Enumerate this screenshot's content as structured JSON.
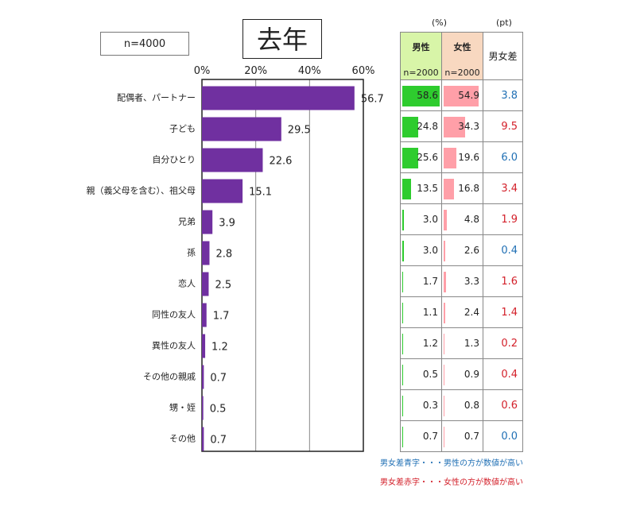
{
  "sample_label": "n=4000",
  "title": "去年",
  "units": {
    "pct": "(%)",
    "pt": "(pt)"
  },
  "table_header": {
    "male": "男性",
    "male_n": "n=2000",
    "female": "女性",
    "female_n": "n=2000",
    "diff": "男女差"
  },
  "notes": {
    "blue": "男女差青字・・・男性の方が数値が高い",
    "red": "男女差赤字・・・女性の方が数値が高い"
  },
  "colors": {
    "bar": "#7030a0",
    "male_bar": "#2ecc2e",
    "female_bar": "#ff9fa8",
    "blue": "#1f6fb4",
    "red": "#d3202a"
  },
  "chart_data": {
    "type": "bar",
    "orientation": "horizontal",
    "title": "去年",
    "xlim": [
      0,
      60
    ],
    "ticks": [
      "0%",
      "20%",
      "40%",
      "60%"
    ],
    "grid": true,
    "categories": [
      "配偶者、パートナー",
      "子ども",
      "自分ひとり",
      "親（義父母を含む）、祖父母",
      "兄弟",
      "孫",
      "恋人",
      "同性の友人",
      "異性の友人",
      "その他の親戚",
      "甥・姪",
      "その他"
    ],
    "values": [
      56.7,
      29.5,
      22.6,
      15.1,
      3.9,
      2.8,
      2.5,
      1.7,
      1.2,
      0.7,
      0.5,
      0.7
    ],
    "value_labels": [
      "56.7",
      "29.5",
      "22.6",
      "15.1",
      "3.9",
      "2.8",
      "2.5",
      "1.7",
      "1.2",
      "0.7",
      "0.5",
      "0.7"
    ],
    "male": [
      "58.6",
      "24.8",
      "25.6",
      "13.5",
      "3.0",
      "3.0",
      "1.7",
      "1.1",
      "1.2",
      "0.5",
      "0.3",
      "0.7"
    ],
    "female": [
      "54.9",
      "34.3",
      "19.6",
      "16.8",
      "4.8",
      "2.6",
      "3.3",
      "2.4",
      "1.3",
      "0.9",
      "0.8",
      "0.7"
    ],
    "diff": [
      "3.8",
      "9.5",
      "6.0",
      "3.4",
      "1.9",
      "0.4",
      "1.6",
      "1.4",
      "0.2",
      "0.4",
      "0.6",
      "0.0"
    ],
    "diff_color": [
      "blue",
      "red",
      "blue",
      "red",
      "red",
      "blue",
      "red",
      "red",
      "red",
      "red",
      "red",
      "blue"
    ]
  }
}
